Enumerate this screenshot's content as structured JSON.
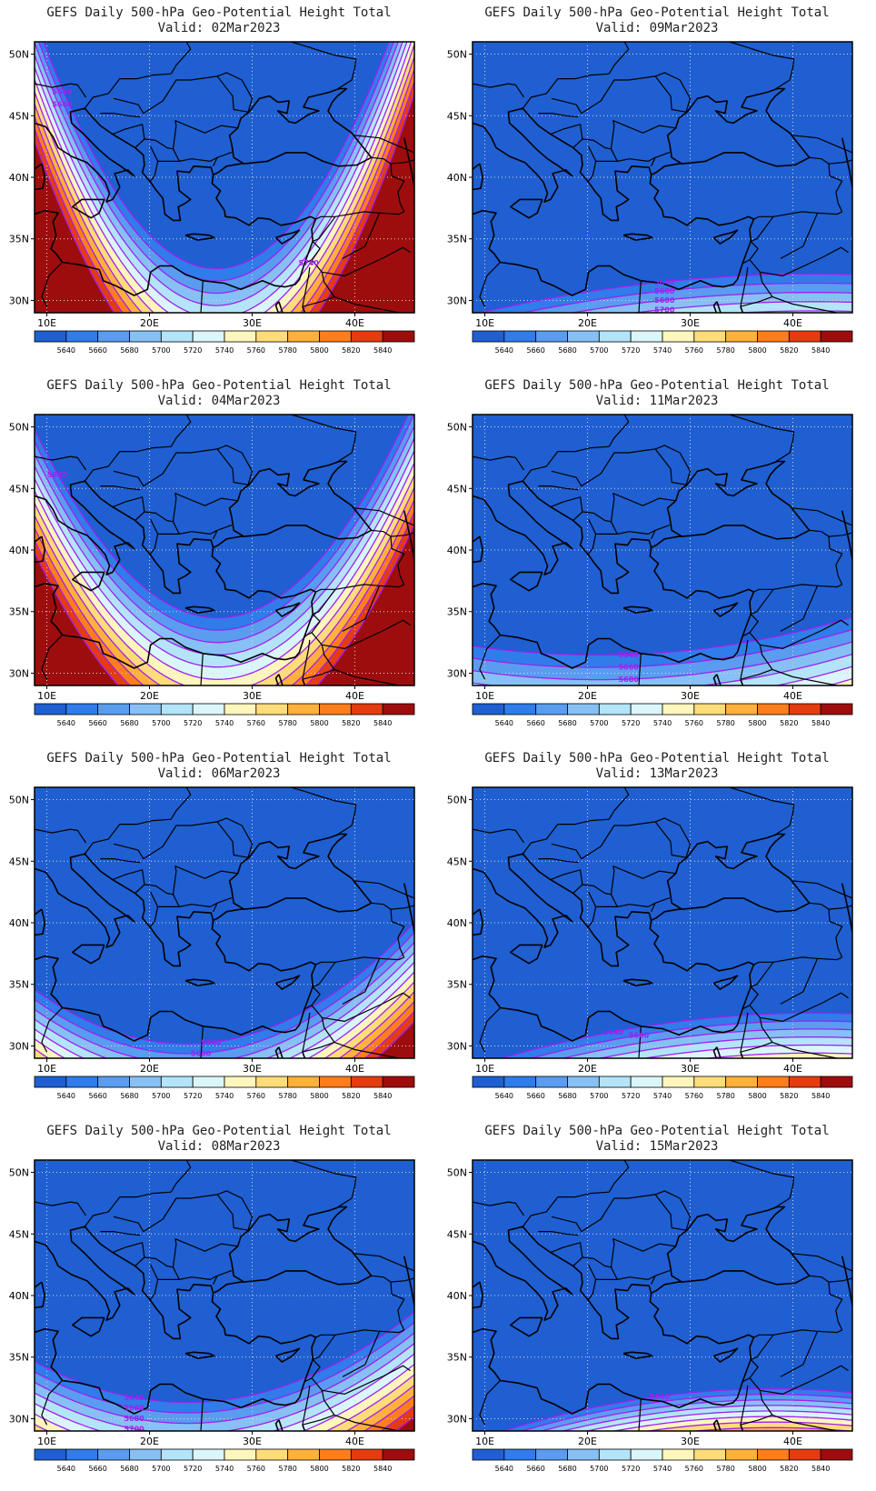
{
  "figure": {
    "title_line1": "GEFS Daily 500-hPa Geo-Potential Height Total",
    "lat_ticks": [
      "50N",
      "45N",
      "40N",
      "35N",
      "30N"
    ],
    "lon_ticks": [
      "10E",
      "20E",
      "30E",
      "40E"
    ],
    "legend_levels": [
      "5640",
      "5660",
      "5680",
      "5700",
      "5720",
      "5740",
      "5760",
      "5780",
      "5800",
      "5820",
      "5840"
    ],
    "legend_colors": [
      "#1f5fd1",
      "#2f7cea",
      "#5a9cf0",
      "#86c0f5",
      "#b3e4f9",
      "#dbf6fb",
      "#fff6bd",
      "#ffdc7a",
      "#ffb13b",
      "#ff7d1a",
      "#e43c0f",
      "#9e0d0d"
    ],
    "contour_color": "#a020f0"
  },
  "panels": [
    {
      "valid": "Valid: 02Mar2023",
      "field": {
        "a": 0.065,
        "b": 0.65,
        "c": 1.0,
        "base": 5652
      },
      "labels": [
        {
          "v": "5640",
          "lon": 11.5,
          "dl": -0.25
        },
        {
          "v": "5660",
          "lon": 11.5,
          "dl": -0.25
        },
        {
          "v": "5740",
          "lon": 35.5,
          "dl": 0.2
        }
      ]
    },
    {
      "valid": "Valid: 09Mar2023",
      "field": {
        "a": -0.003,
        "b": 0.9,
        "c": 0.75,
        "base": 5626
      },
      "labels": [
        {
          "v": "5640",
          "lon": 27.5
        },
        {
          "v": "5660",
          "lon": 27.5
        },
        {
          "v": "5680",
          "lon": 27.5
        },
        {
          "v": "5700",
          "lon": 27.5
        },
        {
          "v": "5720",
          "lon": 28.5
        }
      ]
    },
    {
      "valid": "Valid: 04Mar2023",
      "field": {
        "a": 0.048,
        "b": 0.33,
        "c": 1.0,
        "base": 5690
      },
      "labels": [
        {
          "v": "5640",
          "lon": 11.0,
          "dl": -0.15
        }
      ]
    },
    {
      "valid": "Valid: 11Mar2023",
      "field": {
        "a": 0.005,
        "b": 0.6,
        "c": 1.0,
        "base": 5633
      },
      "labels": [
        {
          "v": "5640",
          "lon": 24.0
        },
        {
          "v": "5660",
          "lon": 24.0
        },
        {
          "v": "5680",
          "lon": 24.0
        },
        {
          "v": "5700",
          "lon": 24.0
        },
        {
          "v": "5720",
          "lon": 25.5
        }
      ]
    },
    {
      "valid": "Valid: 06Mar2023",
      "field": {
        "a": 0.02,
        "b": 1.35,
        "c": 0.8,
        "base": 5600
      },
      "labels": [
        {
          "v": "5640",
          "lon": 26.0
        },
        {
          "v": "5660",
          "lon": 25.0
        },
        {
          "v": "5680",
          "lon": 24.0
        },
        {
          "v": "5700",
          "lon": 20.0
        }
      ]
    },
    {
      "valid": "Valid: 13Mar2023",
      "field": {
        "a": -0.004,
        "b": 1.2,
        "c": 0.65,
        "base": 5633
      },
      "labels": [
        {
          "v": "5640",
          "lon": 22.5
        },
        {
          "v": "5660",
          "lon": 25.0
        }
      ]
    },
    {
      "valid": "Valid: 08Mar2023",
      "field": {
        "a": 0.015,
        "b": 1.0,
        "c": 0.85,
        "base": 5628
      },
      "labels": [
        {
          "v": "5640",
          "lon": 18.5
        },
        {
          "v": "5660",
          "lon": 18.5
        },
        {
          "v": "5680",
          "lon": 18.5
        },
        {
          "v": "5700",
          "lon": 18.5
        }
      ]
    },
    {
      "valid": "Valid: 15Mar2023",
      "field": {
        "a": -0.005,
        "b": 1.1,
        "c": 0.45,
        "base": 5632
      },
      "labels": [
        {
          "v": "5640",
          "lon": 27.0
        }
      ]
    }
  ]
}
